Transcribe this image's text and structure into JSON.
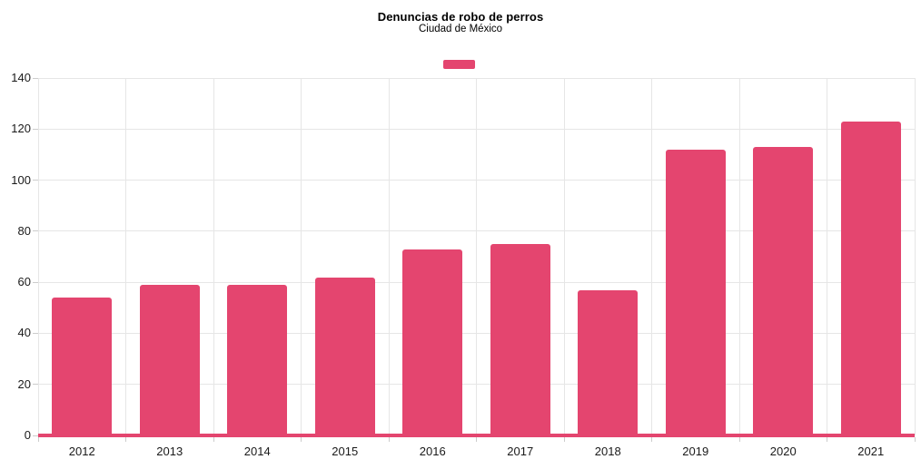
{
  "chart_data": {
    "type": "bar",
    "title": "Denuncias de robo de perros",
    "subtitle": "Ciudad de México",
    "categories": [
      "2012",
      "2013",
      "2014",
      "2015",
      "2016",
      "2017",
      "2018",
      "2019",
      "2020",
      "2021"
    ],
    "values": [
      54,
      59,
      59,
      62,
      73,
      75,
      57,
      112,
      113,
      123
    ],
    "xlabel": "",
    "ylabel": "",
    "ylim": [
      0,
      140
    ],
    "yticks": [
      0,
      20,
      40,
      60,
      80,
      100,
      120,
      140
    ],
    "grid": true,
    "legend": {
      "visible": true,
      "position": "top-center",
      "label": "",
      "swatch_color": "#e4456f"
    },
    "colors": {
      "bar": "#e4456f",
      "baseline": "#e4456f",
      "gridline": "#e6e6e6",
      "tick": "#cccccc",
      "axis_text": "#1a1a1a",
      "title_text": "#000000"
    }
  }
}
